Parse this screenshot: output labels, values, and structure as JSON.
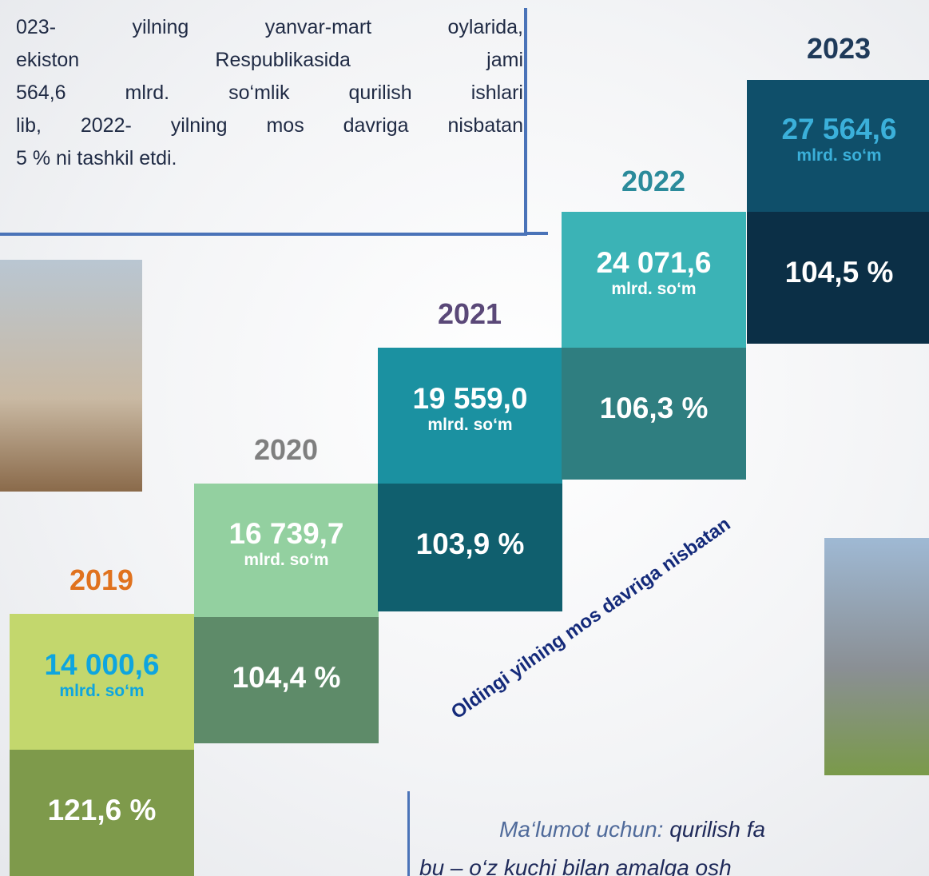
{
  "intro": {
    "lines": [
      "023-  yilning  yanvar-mart  oylarida,",
      "ekiston Respublikasida jami",
      "564,6 mlrd. so‘mlik qurilish ishlari",
      "lib, 2022- yilning mos davriga nisbatan",
      "5 % ni tashkil etdi."
    ]
  },
  "steps": [
    {
      "year": "2019",
      "value": "14 000,6",
      "unit": "mlrd. so‘m",
      "percent": "121,6 %"
    },
    {
      "year": "2020",
      "value": "16 739,7",
      "unit": "mlrd. so‘m",
      "percent": "104,4 %"
    },
    {
      "year": "2021",
      "value": "19 559,0",
      "unit": "mlrd. so‘m",
      "percent": "103,9 %"
    },
    {
      "year": "2022",
      "value": "24 071,6",
      "unit": "mlrd. so‘m",
      "percent": "106,3 %"
    },
    {
      "year": "2023",
      "value": "27 564,6",
      "unit": "mlrd. so‘m",
      "percent": "104,5 %"
    }
  ],
  "rotated_label": "Oldingi yilning mos davriga nisbatan",
  "note": {
    "lead": "Ma‘lumot uchun:",
    "line1": " qurilish fa",
    "line2": "bu – o‘z kuchi bilan amalga osh"
  }
}
